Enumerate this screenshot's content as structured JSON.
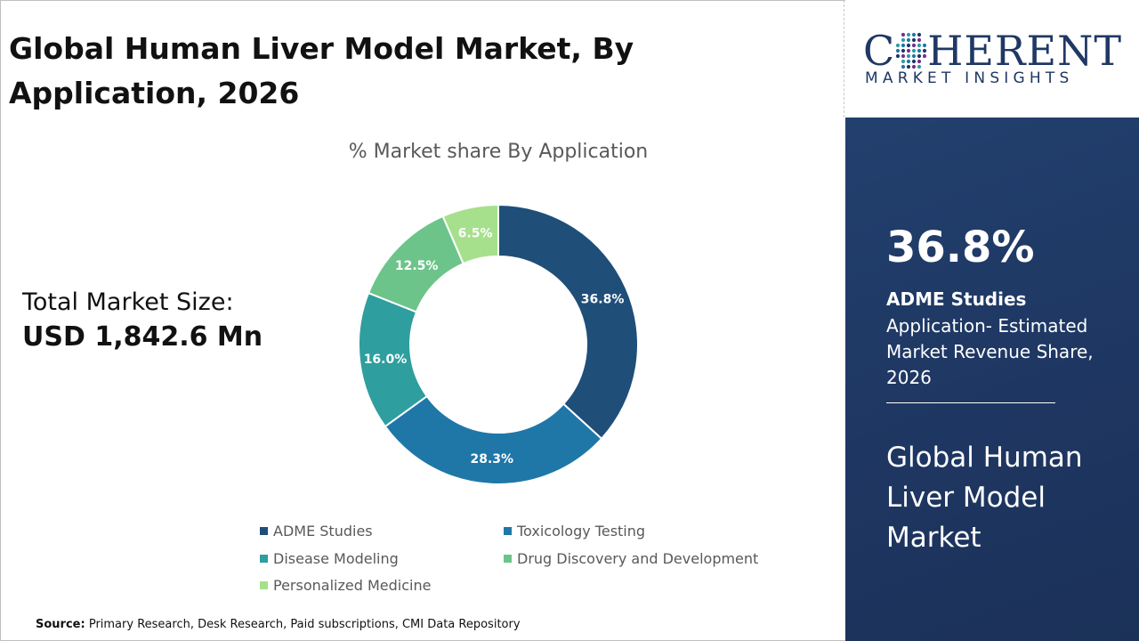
{
  "title": "Global Human Liver Model Market, By Application, 2026",
  "total_market": {
    "label": "Total Market Size:",
    "value": "USD 1,842.6 Mn"
  },
  "chart_data": {
    "type": "pie",
    "subtype": "donut",
    "title": "% Market share By Application",
    "categories": [
      "ADME Studies",
      "Toxicology Testing",
      "Disease Modeling",
      "Drug Discovery and Development",
      "Personalized Medicine"
    ],
    "values": [
      36.8,
      28.3,
      16.0,
      12.5,
      6.5
    ],
    "labels": [
      "36.8%",
      "28.3%",
      "16.0%",
      "12.5%",
      "6.5%"
    ],
    "colors": [
      "#1f4e79",
      "#1f77a8",
      "#2e9e9e",
      "#6cc48a",
      "#a6e08c"
    ],
    "legend": "bottom"
  },
  "source": {
    "label": "Source:",
    "text": "Primary Research, Desk Research, Paid subscriptions, CMI Data Repository"
  },
  "logo": {
    "name_pre": "C",
    "name_post": "HERENT",
    "tagline": "MARKET INSIGHTS"
  },
  "sidebar": {
    "stat": "36.8%",
    "stat_label": "ADME Studies",
    "stat_desc": "Application- Estimated Market Revenue Share, 2026",
    "market_title": "Global Human Liver Model Market",
    "background_color": "#1f3864"
  }
}
